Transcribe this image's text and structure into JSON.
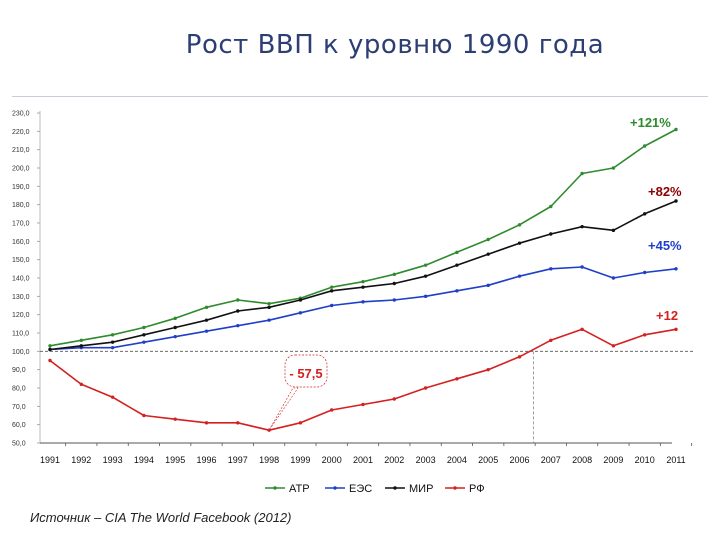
{
  "page": {
    "title": "Рост ВВП к уровню 1990 года",
    "source": "Источник – CIA The World Facebook (2012)"
  },
  "chart_data": {
    "type": "line",
    "title": "Рост ВВП к уровню 1990 года",
    "xlabel": "",
    "ylabel": "",
    "x": [
      "1991",
      "1992",
      "1993",
      "1994",
      "1995",
      "1996",
      "1997",
      "1998",
      "1999",
      "2000",
      "2001",
      "2002",
      "2003",
      "2004",
      "2005",
      "2006",
      "2007",
      "2008",
      "2009",
      "2010",
      "2011"
    ],
    "ytick_labels": [
      "50,0",
      "60,0",
      "70,0",
      "80,0",
      "90,0",
      "100,0",
      "110,0",
      "120,0",
      "130,0",
      "140,0",
      "150,0",
      "160,0",
      "170,0",
      "180,0",
      "190,0",
      "200,0",
      "210,0",
      "220,0",
      "230,0"
    ],
    "ylim": [
      50,
      230
    ],
    "baseline": 100,
    "grid": false,
    "legend_position": "bottom",
    "series": [
      {
        "name": "АТР",
        "color": "#2e8b2e",
        "values": [
          103,
          106,
          109,
          113,
          118,
          124,
          128,
          126,
          129,
          135,
          138,
          142,
          147,
          154,
          161,
          169,
          179,
          197,
          200,
          212,
          221
        ]
      },
      {
        "name": "ЕЭС",
        "color": "#1f3fc8",
        "values": [
          101,
          102,
          102,
          105,
          108,
          111,
          114,
          117,
          121,
          125,
          127,
          128,
          130,
          133,
          136,
          141,
          145,
          146,
          140,
          143,
          145
        ]
      },
      {
        "name": "МИР",
        "color": "#111111",
        "values": [
          101,
          103,
          105,
          109,
          113,
          117,
          122,
          124,
          128,
          133,
          135,
          137,
          141,
          147,
          153,
          159,
          164,
          168,
          166,
          175,
          182
        ]
      },
      {
        "name": "РФ",
        "color": "#d42020",
        "values": [
          95,
          82,
          75,
          65,
          63,
          61,
          61,
          57,
          61,
          68,
          71,
          74,
          80,
          85,
          90,
          97,
          106,
          112,
          103,
          109,
          112
        ]
      }
    ],
    "annotations": [
      {
        "text": "+121%",
        "color": "#2e8b2e"
      },
      {
        "text": "+82%",
        "color": "#8b0000"
      },
      {
        "text": "+45%",
        "color": "#1f3fc8"
      },
      {
        "text": "+12",
        "color": "#d42020"
      },
      {
        "text": "- 57,5",
        "color": "#d42020"
      }
    ]
  }
}
